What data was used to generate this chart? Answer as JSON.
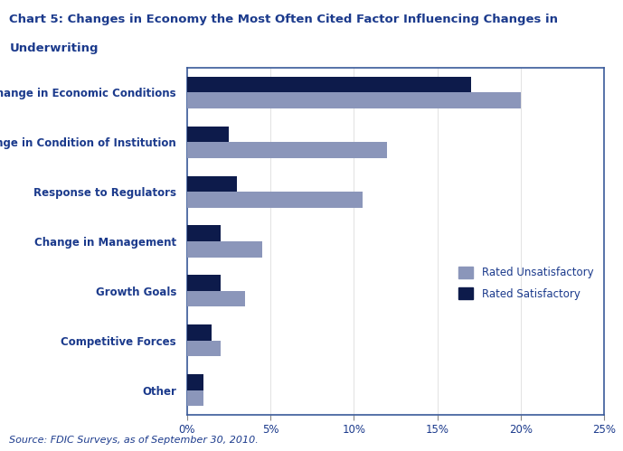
{
  "title_line1": "Chart 5: Changes in Economy the Most Often Cited Factor Influencing Changes in",
  "title_line2": "Underwriting",
  "categories": [
    "Change in Economic Conditions",
    "Change in Condition of Institution",
    "Response to Regulators",
    "Change in Management",
    "Growth Goals",
    "Competitive Forces",
    "Other"
  ],
  "unsatisfactory": [
    20,
    12,
    10.5,
    4.5,
    3.5,
    2.0,
    1.0
  ],
  "satisfactory": [
    17,
    2.5,
    3.0,
    2.0,
    2.0,
    1.5,
    1.0
  ],
  "color_unsatisfactory": "#8B96BA",
  "color_satisfactory": "#0D1B4B",
  "xlabel_ticks": [
    "0%",
    "5%",
    "10%",
    "15%",
    "20%",
    "25%"
  ],
  "xlabel_values": [
    0,
    5,
    10,
    15,
    20,
    25
  ],
  "source": "Source: FDIC Surveys, as of September 30, 2010.",
  "legend_unsatisfactory": "Rated Unsatisfactory",
  "legend_satisfactory": "Rated Satisfactory",
  "title_color": "#1B3A8C",
  "label_color": "#1B3A8C",
  "source_color": "#1B3A8C",
  "background_color": "#FFFFFF",
  "plot_background_color": "#FFFFFF",
  "border_color": "#3A5A9A",
  "bar_height": 0.32,
  "figsize": [
    6.89,
    4.99
  ],
  "dpi": 100
}
